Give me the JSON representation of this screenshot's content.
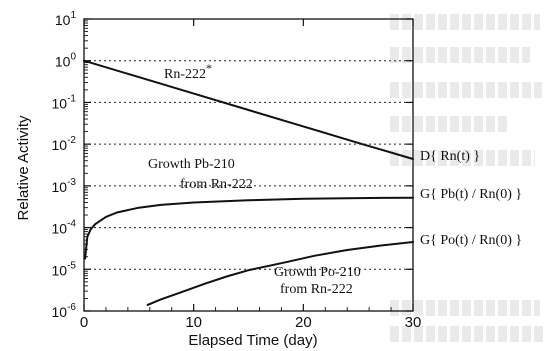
{
  "chart_data": {
    "type": "line",
    "title": "",
    "xlabel": "Elapsed Time (day)",
    "ylabel": "Relative Activity",
    "xlim": [
      0,
      30
    ],
    "ylim_log10": [
      -6,
      1
    ],
    "yscale": "log",
    "x_ticks": [
      "0",
      "10",
      "20",
      "30"
    ],
    "y_ticks": [
      {
        "base": "10",
        "exp": "1"
      },
      {
        "base": "10",
        "exp": "0"
      },
      {
        "base": "10",
        "exp": "-1"
      },
      {
        "base": "10",
        "exp": "-2"
      },
      {
        "base": "10",
        "exp": "-3"
      },
      {
        "base": "10",
        "exp": "-4"
      },
      {
        "base": "10",
        "exp": "-5"
      },
      {
        "base": "10",
        "exp": "-6"
      }
    ],
    "grid": "dotted horizontal at each decade",
    "series": [
      {
        "name": "D{ Rn(t) }",
        "x": [
          0,
          5,
          10,
          15,
          20,
          25,
          30
        ],
        "y": [
          1.0,
          0.404,
          0.163,
          0.066,
          0.0266,
          0.0107,
          0.0044
        ]
      },
      {
        "name": "G{ Pb(t) / Rn(0) }",
        "x": [
          0.1,
          0.3,
          0.6,
          1,
          2,
          3,
          5,
          7,
          10,
          15,
          20,
          25,
          30
        ],
        "y": [
          1.8e-05,
          6e-05,
          9e-05,
          0.00012,
          0.00018,
          0.00023,
          0.0003,
          0.00035,
          0.0004,
          0.00045,
          0.00049,
          0.00051,
          0.00052
        ]
      },
      {
        "name": "G{ Po(t) / Rn(0) }",
        "x": [
          5.8,
          7,
          9,
          11,
          13,
          15,
          18,
          21,
          24,
          27,
          30
        ],
        "y": [
          1.4e-06,
          1.9e-06,
          2.9e-06,
          4.5e-06,
          6.7e-06,
          9.5e-06,
          1.4e-05,
          2.1e-05,
          2.9e-05,
          3.7e-05,
          4.5e-05
        ]
      }
    ],
    "annotations": {
      "rn": {
        "main": "Rn-222",
        "sup": "*"
      },
      "pb": [
        "Growth Pb-210",
        "from Rn-222"
      ],
      "po": [
        "Growth Po-210",
        "from Rn-222"
      ]
    }
  }
}
